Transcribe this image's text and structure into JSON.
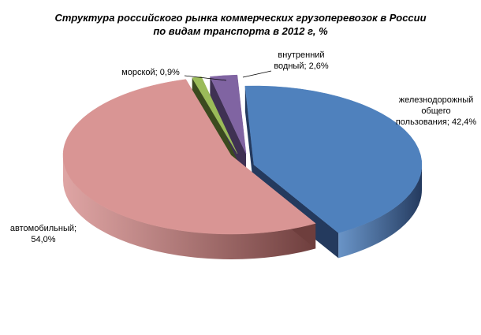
{
  "chart_data": {
    "type": "pie",
    "title_lines": [
      "Структура российского рынка коммерческих грузоперевозок в России",
      "по видам транспорта в 2012 г, %"
    ],
    "slices": [
      {
        "name": "железнодорожный общего пользования",
        "value": 42.4,
        "label_lines": [
          "железнодорожный",
          "общего",
          "пользования; 42,4%"
        ],
        "color": "#4F81BD",
        "side_color": "#243A5E"
      },
      {
        "name": "автомобильный",
        "value": 54.0,
        "label_lines": [
          "автомобильный;",
          "54,0%"
        ],
        "color": "#D99594",
        "side_color": "#6E3E3D"
      },
      {
        "name": "морской",
        "value": 0.9,
        "label_lines": [
          "морской; 0,9%"
        ],
        "color": "#9BBB59",
        "side_color": "#3B4A1F"
      },
      {
        "name": "внутренний водный",
        "value": 2.6,
        "label_lines": [
          "внутренний",
          "водный; 2,6%"
        ],
        "color": "#8064A2",
        "side_color": "#3F3153"
      }
    ],
    "legend": "none",
    "style": "3d-exploded-pie"
  }
}
